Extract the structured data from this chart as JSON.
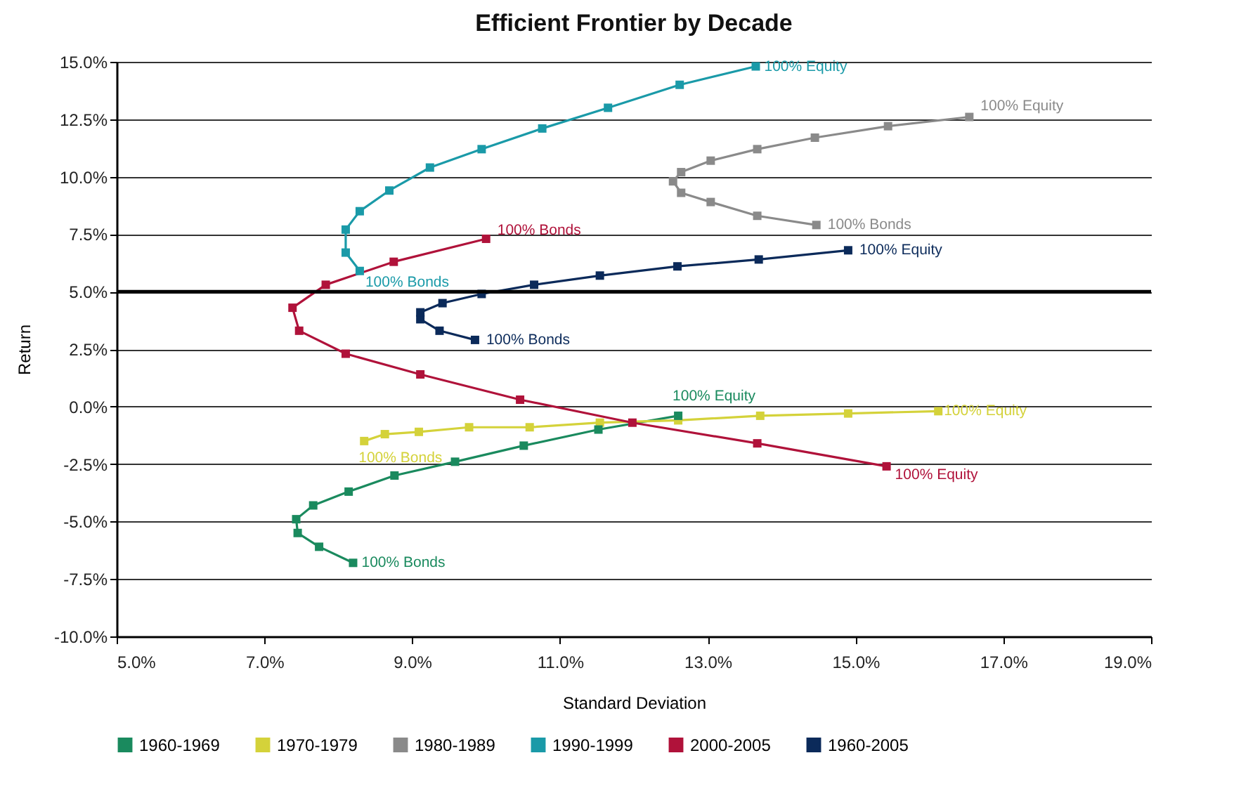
{
  "chart_data": {
    "type": "line",
    "title": "Efficient Frontier by Decade",
    "xlabel": "Standard Deviation",
    "ylabel": "Return",
    "xlim": [
      5,
      19
    ],
    "xticks": [
      {
        "value": 5,
        "label": "5.0%"
      },
      {
        "value": 7,
        "label": "7.0%"
      },
      {
        "value": 9,
        "label": "9.0%"
      },
      {
        "value": 11,
        "label": "11.0%"
      },
      {
        "value": 13,
        "label": "13.0%"
      },
      {
        "value": 15,
        "label": "15.0%"
      },
      {
        "value": 17,
        "label": "17.0%"
      },
      {
        "value": 19,
        "label": "19.0%"
      }
    ],
    "ylim": [
      -10,
      15
    ],
    "yticks": [
      {
        "value": -10,
        "label": "-10.0%"
      },
      {
        "value": -7.5,
        "label": "-7.5%"
      },
      {
        "value": -5,
        "label": "-5.0%"
      },
      {
        "value": -2.5,
        "label": "-2.5%"
      },
      {
        "value": 0,
        "label": "0.0%"
      },
      {
        "value": 2.5,
        "label": "2.5%"
      },
      {
        "value": 5,
        "label": "5.0%"
      },
      {
        "value": 7.5,
        "label": "7.5%"
      },
      {
        "value": 10,
        "label": "10.0%"
      },
      {
        "value": 12.5,
        "label": "12.5%"
      },
      {
        "value": 15,
        "label": "15.0%"
      }
    ],
    "grid": "y",
    "legend": "bottom",
    "marker": "square",
    "line_style": "solid",
    "ref_lines": [
      {
        "axis": "y",
        "value": 5,
        "color": "#000000"
      }
    ],
    "series": [
      {
        "name": "1960-1969",
        "color": "#1a8a5e",
        "x": [
          8.2,
          7.74,
          7.45,
          7.43,
          7.66,
          8.14,
          8.76,
          9.58,
          10.51,
          11.52,
          12.6
        ],
        "values": [
          -6.8,
          -6.1,
          -5.5,
          -4.9,
          -4.3,
          -3.7,
          -3.0,
          -2.4,
          -1.7,
          -1.0,
          -0.4
        ]
      },
      {
        "name": "1970-1979",
        "color": "#d4d23a",
        "x": [
          8.35,
          8.63,
          9.09,
          9.77,
          10.59,
          11.54,
          12.6,
          13.71,
          14.9,
          16.12
        ],
        "values": [
          -1.5,
          -1.2,
          -1.1,
          -0.9,
          -0.9,
          -0.7,
          -0.6,
          -0.4,
          -0.3,
          -0.2
        ]
      },
      {
        "name": "1980-1989",
        "color": "#8a8a8a",
        "x": [
          14.47,
          13.67,
          13.04,
          12.64,
          12.53,
          12.64,
          13.04,
          13.67,
          14.45,
          15.44,
          16.54
        ],
        "values": [
          7.9,
          8.3,
          8.9,
          9.3,
          9.8,
          10.2,
          10.7,
          11.2,
          11.7,
          12.2,
          12.6
        ]
      },
      {
        "name": "1990-1999",
        "color": "#1a9aa8",
        "x": [
          8.29,
          8.1,
          8.1,
          8.29,
          8.69,
          9.24,
          9.94,
          10.76,
          11.65,
          12.62,
          13.65
        ],
        "values": [
          5.9,
          6.7,
          7.7,
          8.5,
          9.4,
          10.4,
          11.2,
          12.1,
          13.0,
          14.0,
          14.8
        ]
      },
      {
        "name": "2000-2005",
        "color": "#b0123a",
        "x": [
          10.0,
          8.75,
          7.83,
          7.38,
          7.47,
          8.1,
          9.11,
          10.46,
          11.98,
          13.67,
          15.42
        ],
        "values": [
          7.3,
          6.3,
          5.3,
          4.3,
          3.3,
          2.3,
          1.4,
          0.3,
          -0.7,
          -1.6,
          -2.6
        ]
      },
      {
        "name": "1960-2005",
        "color": "#0b2a5a",
        "x": [
          9.85,
          9.37,
          9.11,
          9.11,
          9.41,
          9.94,
          10.65,
          11.54,
          12.59,
          13.69,
          14.9
        ],
        "values": [
          2.9,
          3.3,
          3.8,
          4.1,
          4.5,
          4.9,
          5.3,
          5.7,
          6.1,
          6.4,
          6.8
        ]
      }
    ],
    "annotations": [
      {
        "text": "100% Bonds",
        "x": 8.2,
        "y": -6.8
      },
      {
        "text": "100% Equity",
        "x": 12.6,
        "y": -0.4
      },
      {
        "text": "100% Bonds",
        "x": 8.35,
        "y": -1.5
      },
      {
        "text": "100% Equity",
        "x": 16.12,
        "y": -0.2
      },
      {
        "text": "100% Bonds",
        "x": 14.47,
        "y": 7.9
      },
      {
        "text": "100% Equity",
        "x": 16.54,
        "y": 12.6
      },
      {
        "text": "100% Bonds",
        "x": 8.29,
        "y": 5.9
      },
      {
        "text": "100% Equity",
        "x": 13.65,
        "y": 14.8
      },
      {
        "text": "100% Bonds",
        "x": 10.0,
        "y": 7.3
      },
      {
        "text": "100% Equity",
        "x": 15.42,
        "y": -2.6
      },
      {
        "text": "100% Bonds",
        "x": 9.85,
        "y": 2.9
      },
      {
        "text": "100% Equity",
        "x": 14.9,
        "y": 6.8
      }
    ]
  }
}
